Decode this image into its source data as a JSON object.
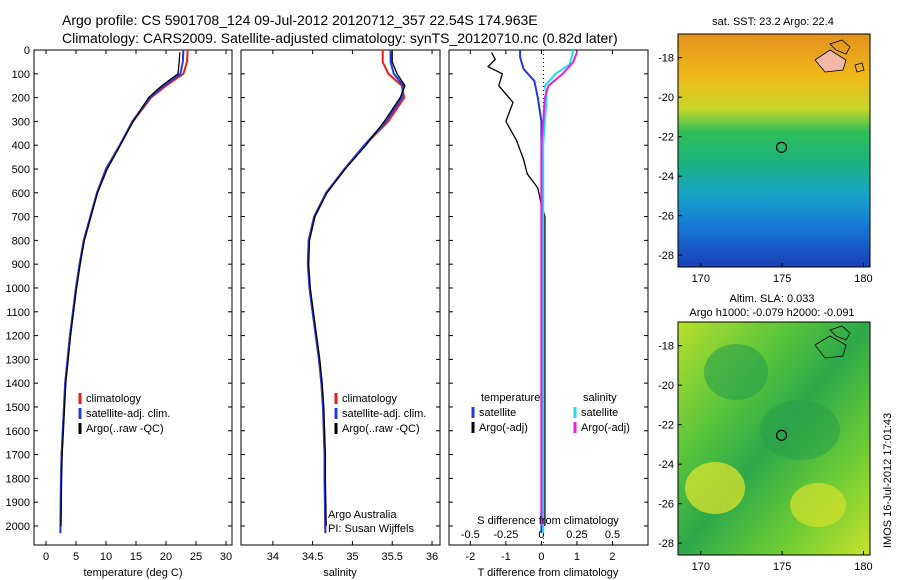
{
  "header": {
    "line1": "Argo profile: CS 5901708_124 09-Jul-2012 20120712_357 22.54S 174.963E",
    "line2": "Climatology: CARS2009. Satellite-adjusted climatology: synTS_20120710.nc (0.82d later)"
  },
  "colors": {
    "climatology": "#e81e1e",
    "satellite": "#1f3be0",
    "argo": "#000000",
    "sal_satellite": "#1fe0e8",
    "sal_argo": "#e81ee8"
  },
  "chart_data": [
    {
      "type": "line",
      "xlabel": "temperature (deg C)",
      "xlim": [
        -2,
        31
      ],
      "xticks": [
        0,
        5,
        10,
        15,
        20,
        25,
        30
      ],
      "ylim": [
        2080,
        0
      ],
      "yticks": [
        0,
        100,
        200,
        300,
        400,
        500,
        600,
        700,
        800,
        900,
        1000,
        1100,
        1200,
        1300,
        1400,
        1500,
        1600,
        1700,
        1800,
        1900,
        2000
      ],
      "legend": [
        "climatology",
        "satellite-adj. clim.",
        "Argo(..raw -QC)"
      ],
      "series": [
        {
          "name": "climatology",
          "color": "#e81e1e",
          "x": [
            23.6,
            23.5,
            22.9,
            20.0,
            17.5,
            14.5,
            12.3,
            10.0,
            8.5,
            7.4,
            6.3,
            5.6,
            5.0,
            4.5,
            4.0,
            3.6,
            3.2,
            3.0,
            2.8,
            2.6,
            2.5,
            2.4
          ],
          "y": [
            0,
            50,
            100,
            150,
            200,
            300,
            400,
            500,
            600,
            700,
            800,
            900,
            1000,
            1100,
            1200,
            1300,
            1400,
            1500,
            1600,
            1700,
            1800,
            2030
          ]
        },
        {
          "name": "satellite-adj. clim.",
          "color": "#1f3be0",
          "x": [
            22.9,
            22.8,
            22.4,
            19.6,
            17.3,
            14.4,
            12.3,
            10.0,
            8.5,
            7.4,
            6.3,
            5.6,
            5.0,
            4.5,
            4.0,
            3.6,
            3.2,
            3.0,
            2.8,
            2.6,
            2.5,
            2.4
          ],
          "y": [
            0,
            50,
            100,
            150,
            200,
            300,
            400,
            500,
            600,
            700,
            800,
            900,
            1000,
            1100,
            1200,
            1300,
            1400,
            1500,
            1600,
            1700,
            1800,
            2030
          ]
        },
        {
          "name": "Argo(..raw -QC)",
          "color": "#000000",
          "x": [
            22.3,
            22.2,
            22.0,
            19.3,
            17.1,
            14.5,
            12.4,
            10.2,
            8.6,
            7.5,
            6.4,
            5.7,
            5.1,
            4.6,
            4.1,
            3.7,
            3.3,
            3.1,
            2.9,
            2.7,
            2.6,
            2.5
          ],
          "y": [
            10,
            50,
            100,
            150,
            200,
            300,
            400,
            500,
            600,
            700,
            800,
            900,
            1000,
            1100,
            1200,
            1300,
            1400,
            1500,
            1600,
            1700,
            1800,
            2000
          ]
        }
      ]
    },
    {
      "type": "line",
      "xlabel": "salinity",
      "xlim": [
        33.6,
        36.1
      ],
      "xticks": [
        34,
        34.5,
        35,
        35.5,
        36
      ],
      "xticklabels": [
        "34",
        "34.5",
        "35",
        "35.5",
        "36"
      ],
      "ylim": [
        2080,
        0
      ],
      "legend": [
        "climatology",
        "satellite-adj. clim.",
        "Argo(..raw -QC)"
      ],
      "annotation": [
        "Argo Australia",
        "PI: Susan Wijffels"
      ],
      "series": [
        {
          "name": "climatology",
          "color": "#e81e1e",
          "x": [
            35.38,
            35.38,
            35.45,
            35.62,
            35.65,
            35.45,
            35.15,
            34.9,
            34.67,
            34.52,
            34.45,
            34.44,
            34.46,
            34.5,
            34.54,
            34.58,
            34.61,
            34.63,
            34.64,
            34.65,
            34.65,
            34.66
          ],
          "y": [
            0,
            50,
            100,
            150,
            200,
            300,
            400,
            500,
            600,
            700,
            800,
            900,
            1000,
            1100,
            1200,
            1300,
            1400,
            1500,
            1600,
            1700,
            1800,
            2030
          ]
        },
        {
          "name": "satellite-adj. clim.",
          "color": "#1f3be0",
          "x": [
            35.48,
            35.48,
            35.52,
            35.64,
            35.62,
            35.42,
            35.15,
            34.9,
            34.67,
            34.52,
            34.45,
            34.44,
            34.46,
            34.5,
            34.54,
            34.58,
            34.61,
            34.63,
            34.64,
            34.65,
            34.65,
            34.66
          ],
          "y": [
            0,
            50,
            100,
            150,
            200,
            300,
            400,
            500,
            600,
            700,
            800,
            900,
            1000,
            1100,
            1200,
            1300,
            1400,
            1500,
            1600,
            1700,
            1800,
            2030
          ]
        },
        {
          "name": "Argo(..raw -QC)",
          "color": "#000000",
          "x": [
            35.5,
            35.5,
            35.56,
            35.66,
            35.6,
            35.4,
            35.17,
            34.91,
            34.68,
            34.53,
            34.46,
            34.45,
            34.47,
            34.51,
            34.55,
            34.59,
            34.62,
            34.64,
            34.65,
            34.66,
            34.66,
            34.67
          ],
          "y": [
            10,
            50,
            100,
            150,
            200,
            300,
            400,
            500,
            600,
            700,
            800,
            900,
            1000,
            1100,
            1200,
            1300,
            1400,
            1500,
            1600,
            1700,
            1800,
            2000
          ]
        }
      ]
    },
    {
      "type": "line",
      "xlabel": "T difference from climatology",
      "xlabel_top": "S difference from climatology",
      "xlim": [
        -2.6,
        3.0
      ],
      "xticks": [
        -2,
        -1,
        0,
        1,
        2
      ],
      "top_ticks": [
        -0.5,
        -0.25,
        0,
        0.25,
        0.5
      ],
      "top_ticklabels": [
        "-0.5",
        "-0.25",
        "0",
        "0.25",
        "0.5"
      ],
      "ylim": [
        2080,
        0
      ],
      "legend_temperature": [
        "temperature",
        "satellite",
        "Argo(-adj)"
      ],
      "legend_salinity": [
        "salinity",
        "satellite",
        "Argo(-adj)"
      ],
      "series": [
        {
          "name": "satellite",
          "color": "#1f3be0",
          "x": [
            -0.6,
            -0.6,
            -0.5,
            -0.2,
            -0.1,
            0.0,
            0.0,
            0.0,
            0.0,
            0.0,
            0.0,
            0.0,
            0.0,
            0.0,
            0.0,
            0.0,
            0.0,
            0.0,
            0.0,
            0.0,
            0.0
          ],
          "y": [
            0,
            30,
            80,
            130,
            200,
            300,
            400,
            500,
            600,
            700,
            800,
            900,
            1000,
            1100,
            1200,
            1300,
            1400,
            1500,
            1600,
            1700,
            2030
          ]
        },
        {
          "name": "Argo(-adj)",
          "color": "#000000",
          "x": [
            -1.4,
            -1.3,
            -1.5,
            -1.1,
            -1.2,
            -0.8,
            -1.0,
            -0.7,
            -0.5,
            -0.4,
            -0.1,
            0.0,
            0.1,
            0.1,
            0.1,
            0.1,
            0.1,
            0.1,
            0.1,
            0.1,
            0.1,
            0.1
          ],
          "y": [
            10,
            40,
            70,
            100,
            150,
            220,
            300,
            380,
            460,
            520,
            580,
            650,
            700,
            800,
            900,
            1000,
            1200,
            1400,
            1500,
            1700,
            1800,
            2000
          ]
        },
        {
          "name": "satellite",
          "color": "#1fe0e8",
          "x": [
            0.9,
            0.8,
            0.4,
            0.1,
            0.15,
            0.1,
            0.05,
            0.05,
            0.05,
            0.05,
            0.05,
            0.05,
            0.05,
            0.05,
            0.05,
            0.05,
            0.05,
            0.05,
            0.05,
            0.05,
            0.05,
            0.05
          ],
          "y": [
            0,
            60,
            100,
            150,
            200,
            300,
            400,
            500,
            550,
            650,
            700,
            800,
            900,
            1000,
            1100,
            1200,
            1300,
            1400,
            1600,
            1700,
            1800,
            2030
          ]
        },
        {
          "name": "Argo(-adj)",
          "color": "#e81ee8",
          "x": [
            1.0,
            0.9,
            0.6,
            0.2,
            0.1,
            0.05,
            0.0,
            0.0,
            0.0,
            0.0,
            0.0,
            0.0,
            0.0,
            0.0,
            0.0,
            0.0,
            0.0,
            0.0,
            0.0,
            0.0,
            0.0,
            0.0
          ],
          "y": [
            10,
            50,
            100,
            150,
            200,
            300,
            400,
            500,
            600,
            700,
            800,
            900,
            1000,
            1100,
            1200,
            1300,
            1400,
            1500,
            1600,
            1700,
            1800,
            2000
          ]
        }
      ]
    },
    {
      "type": "heatmap",
      "title": "sat. SST: 23.2 Argo: 22.4",
      "xticks": [
        170,
        175,
        180
      ],
      "yticks": [
        -18,
        -20,
        -22,
        -24,
        -26,
        -28
      ],
      "xlim": [
        168.6,
        180.4
      ],
      "ylim": [
        -28.6,
        -16.8
      ],
      "marker": {
        "lon": 174.963,
        "lat": -22.54
      }
    },
    {
      "type": "heatmap",
      "title": "Altim. SLA: 0.033",
      "subtitle": "Argo h1000: -0.079 h2000: -0.091",
      "xticks": [
        170,
        175,
        180
      ],
      "yticks": [
        -18,
        -20,
        -22,
        -24,
        -26,
        -28
      ],
      "xlim": [
        168.6,
        180.4
      ],
      "ylim": [
        -28.6,
        -16.8
      ],
      "marker": {
        "lon": 174.963,
        "lat": -22.54
      }
    }
  ],
  "footer": {
    "stamp": "IMOS 16-Jul-2012 17:01:43"
  }
}
